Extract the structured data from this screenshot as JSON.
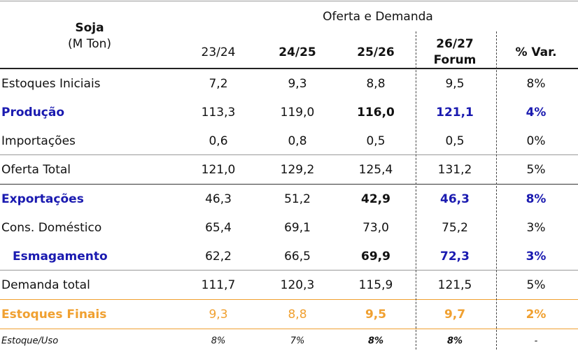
{
  "header": {
    "title": "Soja",
    "unit": "(M Ton)",
    "group": "Oferta e Demanda",
    "columns": [
      [
        "23/24"
      ],
      [
        "24/25"
      ],
      [
        "25/26"
      ],
      [
        "26/27",
        "Forum"
      ],
      [
        "% Var."
      ]
    ]
  },
  "table": {
    "rows": [
      [
        "Estoques Iniciais",
        "7,2",
        "9,3",
        "8,8",
        "9,5",
        "8%"
      ],
      [
        "Produção",
        "113,3",
        "119,0",
        "116,0",
        "121,1",
        "4%"
      ],
      [
        "Importações",
        "0,6",
        "0,8",
        "0,5",
        "0,5",
        "0%"
      ],
      [
        "Oferta Total",
        "121,0",
        "129,2",
        "125,4",
        "131,2",
        "5%"
      ],
      [
        "Exportações",
        "46,3",
        "51,2",
        "42,9",
        "46,3",
        "8%"
      ],
      [
        "Cons. Doméstico",
        "65,4",
        "69,1",
        "73,0",
        "75,2",
        "3%"
      ],
      [
        "Esmagamento",
        "62,2",
        "66,5",
        "69,9",
        "72,3",
        "3%"
      ],
      [
        "Demanda total",
        "111,7",
        "120,3",
        "115,9",
        "121,5",
        "5%"
      ],
      [
        "Estoques Finais",
        "9,3",
        "8,8",
        "9,5",
        "9,7",
        "2%"
      ],
      [
        "Estoque/Uso",
        "8%",
        "7%",
        "8%",
        "8%",
        "-"
      ]
    ]
  }
}
